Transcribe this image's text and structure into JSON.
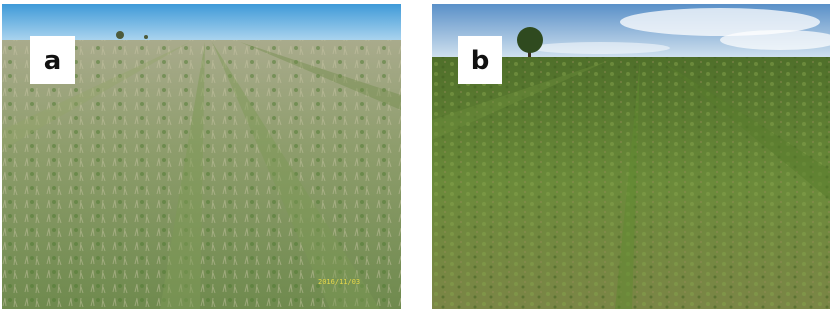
{
  "panels": [
    {
      "label": "a",
      "timestamp": "2016/11/03"
    },
    {
      "label": "b"
    }
  ]
}
